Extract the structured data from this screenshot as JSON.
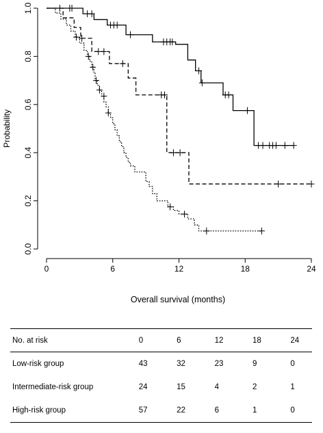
{
  "chart_data": {
    "type": "line",
    "subtype": "kaplan-meier",
    "xlabel": "Overall survival (months)",
    "ylabel": "Probability",
    "xlim": [
      0,
      24
    ],
    "ylim": [
      0,
      1
    ],
    "xticks": [
      0,
      6,
      12,
      18,
      24
    ],
    "yticks": [
      0.0,
      0.2,
      0.4,
      0.6,
      0.8,
      1.0
    ],
    "ytick_labels": [
      "0.0",
      "0.2",
      "0.4",
      "0.6",
      "0.8",
      "1.0"
    ],
    "grid": false,
    "series": [
      {
        "style": "solid",
        "steps": [
          [
            0,
            1.0
          ],
          [
            3.3,
            0.977
          ],
          [
            4.3,
            0.953
          ],
          [
            5.5,
            0.93
          ],
          [
            7.2,
            0.89
          ],
          [
            9.6,
            0.86
          ],
          [
            11.7,
            0.85
          ],
          [
            12.8,
            0.785
          ],
          [
            13.5,
            0.74
          ],
          [
            14,
            0.69
          ],
          [
            16,
            0.64
          ],
          [
            16.9,
            0.575
          ],
          [
            18.8,
            0.43
          ],
          [
            22.4,
            0.43
          ]
        ],
        "censors": [
          [
            1.2,
            1.0
          ],
          [
            2.1,
            1.0
          ],
          [
            2.3,
            1.0
          ],
          [
            3.7,
            0.977
          ],
          [
            4.1,
            0.977
          ],
          [
            5.8,
            0.93
          ],
          [
            6.1,
            0.93
          ],
          [
            6.4,
            0.93
          ],
          [
            7.6,
            0.89
          ],
          [
            10.6,
            0.86
          ],
          [
            10.9,
            0.86
          ],
          [
            11.2,
            0.86
          ],
          [
            11.4,
            0.86
          ],
          [
            13.8,
            0.74
          ],
          [
            14.1,
            0.69
          ],
          [
            16.2,
            0.64
          ],
          [
            16.5,
            0.64
          ],
          [
            18.2,
            0.575
          ],
          [
            19.2,
            0.43
          ],
          [
            19.6,
            0.43
          ],
          [
            20.2,
            0.43
          ],
          [
            20.5,
            0.43
          ],
          [
            20.8,
            0.43
          ],
          [
            21.6,
            0.43
          ],
          [
            22.4,
            0.43
          ]
        ]
      },
      {
        "style": "dashed",
        "steps": [
          [
            0,
            1.0
          ],
          [
            1.5,
            0.96
          ],
          [
            2.5,
            0.92
          ],
          [
            3.1,
            0.875
          ],
          [
            4.1,
            0.82
          ],
          [
            5.7,
            0.77
          ],
          [
            7.4,
            0.71
          ],
          [
            8.1,
            0.64
          ],
          [
            10.9,
            0.4
          ],
          [
            12.9,
            0.27
          ],
          [
            24,
            0.27
          ]
        ],
        "censors": [
          [
            3.2,
            0.875
          ],
          [
            4.7,
            0.82
          ],
          [
            5.2,
            0.82
          ],
          [
            6.9,
            0.77
          ],
          [
            10.4,
            0.64
          ],
          [
            10.7,
            0.64
          ],
          [
            11.5,
            0.4
          ],
          [
            12.1,
            0.4
          ],
          [
            21,
            0.27
          ],
          [
            24,
            0.27
          ]
        ]
      },
      {
        "style": "dotted",
        "steps": [
          [
            0,
            1.0
          ],
          [
            0.8,
            0.98
          ],
          [
            1.3,
            0.955
          ],
          [
            1.8,
            0.93
          ],
          [
            2.2,
            0.905
          ],
          [
            2.6,
            0.88
          ],
          [
            3.0,
            0.855
          ],
          [
            3.4,
            0.825
          ],
          [
            3.7,
            0.8
          ],
          [
            3.9,
            0.78
          ],
          [
            4.1,
            0.755
          ],
          [
            4.3,
            0.73
          ],
          [
            4.4,
            0.7
          ],
          [
            4.6,
            0.68
          ],
          [
            4.8,
            0.66
          ],
          [
            5.0,
            0.635
          ],
          [
            5.2,
            0.61
          ],
          [
            5.4,
            0.59
          ],
          [
            5.6,
            0.565
          ],
          [
            5.8,
            0.545
          ],
          [
            6.0,
            0.52
          ],
          [
            6.2,
            0.495
          ],
          [
            6.4,
            0.47
          ],
          [
            6.6,
            0.445
          ],
          [
            6.8,
            0.425
          ],
          [
            7.0,
            0.4
          ],
          [
            7.2,
            0.38
          ],
          [
            7.4,
            0.36
          ],
          [
            7.6,
            0.345
          ],
          [
            8.0,
            0.32
          ],
          [
            9.0,
            0.28
          ],
          [
            9.3,
            0.26
          ],
          [
            9.6,
            0.23
          ],
          [
            10.0,
            0.2
          ],
          [
            11.0,
            0.175
          ],
          [
            11.5,
            0.16
          ],
          [
            12.0,
            0.145
          ],
          [
            12.8,
            0.125
          ],
          [
            13.4,
            0.1
          ],
          [
            13.8,
            0.075
          ],
          [
            19.5,
            0.075
          ]
        ],
        "censors": [
          [
            2.7,
            0.88
          ],
          [
            3.8,
            0.8
          ],
          [
            4.2,
            0.755
          ],
          [
            4.5,
            0.7
          ],
          [
            4.8,
            0.66
          ],
          [
            5.2,
            0.635
          ],
          [
            5.6,
            0.565
          ],
          [
            11.2,
            0.175
          ],
          [
            12.5,
            0.145
          ],
          [
            14.5,
            0.075
          ],
          [
            19.5,
            0.075
          ]
        ]
      }
    ]
  },
  "risk_table": {
    "header_label": "No. at risk",
    "times": [
      "0",
      "6",
      "12",
      "18",
      "24"
    ],
    "rows": [
      {
        "label": "Low-risk group",
        "values": [
          "43",
          "32",
          "23",
          "9",
          "0"
        ]
      },
      {
        "label": "Intermediate-risk group",
        "values": [
          "24",
          "15",
          "4",
          "2",
          "1"
        ]
      },
      {
        "label": "High-risk group",
        "values": [
          "57",
          "22",
          "6",
          "1",
          "0"
        ]
      }
    ]
  }
}
